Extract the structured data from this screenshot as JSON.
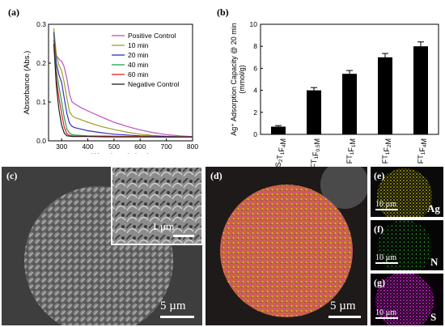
{
  "panels": {
    "a": "(a)",
    "b": "(b)",
    "c": "(c)",
    "d": "(d)",
    "e": "(e)",
    "f": "(f)",
    "g": "(g)"
  },
  "chart_data": [
    {
      "type": "line",
      "xlabel": "Wavelength (nm)",
      "ylabel": "Absorbance (Abs.)",
      "xlim": [
        250,
        800
      ],
      "ylim": [
        0.0,
        0.3
      ],
      "xticks": [
        300,
        400,
        500,
        600,
        700,
        800
      ],
      "yticks": [
        0.0,
        0.1,
        0.2,
        0.3
      ],
      "legend_position": "top-right",
      "series": [
        {
          "name": "Positive Control",
          "color": "#c050c0",
          "x": [
            270,
            280,
            290,
            300,
            310,
            320,
            330,
            340,
            350,
            375,
            400,
            450,
            500,
            550,
            600,
            650,
            700,
            750,
            800
          ],
          "y": [
            0.28,
            0.22,
            0.21,
            0.205,
            0.19,
            0.16,
            0.12,
            0.1,
            0.095,
            0.085,
            0.077,
            0.062,
            0.048,
            0.037,
            0.028,
            0.021,
            0.016,
            0.013,
            0.011
          ]
        },
        {
          "name": "10 min",
          "color": "#a0a020",
          "x": [
            270,
            280,
            290,
            300,
            310,
            320,
            330,
            340,
            350,
            375,
            400,
            450,
            500,
            550,
            600,
            650,
            700,
            750,
            800
          ],
          "y": [
            0.29,
            0.22,
            0.195,
            0.18,
            0.15,
            0.11,
            0.075,
            0.065,
            0.06,
            0.054,
            0.048,
            0.037,
            0.029,
            0.022,
            0.017,
            0.014,
            0.012,
            0.011,
            0.01
          ]
        },
        {
          "name": "20 min",
          "color": "#3030c0",
          "x": [
            270,
            280,
            290,
            300,
            310,
            320,
            330,
            340,
            350,
            375,
            400,
            450,
            500,
            600,
            700,
            800
          ],
          "y": [
            0.28,
            0.2,
            0.17,
            0.15,
            0.11,
            0.07,
            0.045,
            0.037,
            0.034,
            0.03,
            0.026,
            0.021,
            0.017,
            0.013,
            0.011,
            0.01
          ]
        },
        {
          "name": "40 min",
          "color": "#20a050",
          "x": [
            270,
            280,
            290,
            300,
            310,
            320,
            330,
            340,
            350,
            375,
            400,
            500,
            600,
            700,
            800
          ],
          "y": [
            0.27,
            0.18,
            0.14,
            0.1,
            0.06,
            0.03,
            0.02,
            0.016,
            0.015,
            0.014,
            0.013,
            0.012,
            0.011,
            0.01,
            0.01
          ]
        },
        {
          "name": "60 min",
          "color": "#e02020",
          "x": [
            270,
            280,
            290,
            300,
            310,
            320,
            330,
            340,
            350,
            400,
            500,
            600,
            700,
            800
          ],
          "y": [
            0.26,
            0.16,
            0.11,
            0.07,
            0.035,
            0.018,
            0.014,
            0.013,
            0.012,
            0.012,
            0.011,
            0.011,
            0.01,
            0.01
          ]
        },
        {
          "name": "Negative Control",
          "color": "#202020",
          "x": [
            270,
            280,
            290,
            300,
            310,
            320,
            330,
            340,
            350,
            400,
            500,
            600,
            700,
            800
          ],
          "y": [
            0.25,
            0.14,
            0.08,
            0.04,
            0.02,
            0.013,
            0.012,
            0.011,
            0.011,
            0.011,
            0.01,
            0.01,
            0.01,
            0.01
          ]
        }
      ]
    },
    {
      "type": "bar",
      "ylabel_line1": "Ag⁺ Adsorption Capacity @ 20 min",
      "ylabel_line2": "(mmol/g)",
      "ylim": [
        0,
        10
      ],
      "yticks": [
        0,
        2,
        4,
        6,
        8,
        10
      ],
      "categories": [
        {
          "label": "S",
          "sub1": "2",
          "mid": "T",
          "sub2": "1",
          "end": "F",
          "sub3": "4",
          "tail": "M"
        },
        {
          "label": "FT",
          "sub1": "1",
          "mid": "F",
          "sub2": "0.5",
          "end": "M",
          "sub3": "",
          "tail": ""
        },
        {
          "label": "FT",
          "sub1": "1",
          "mid": "F",
          "sub2": "1",
          "end": "M",
          "sub3": "",
          "tail": ""
        },
        {
          "label": "FT",
          "sub1": "1",
          "mid": "F",
          "sub2": "2",
          "end": "M",
          "sub3": "",
          "tail": ""
        },
        {
          "label": "FT",
          "sub1": "1",
          "mid": "F",
          "sub2": "4",
          "end": "M",
          "sub3": "",
          "tail": ""
        }
      ],
      "values": [
        0.7,
        4.0,
        5.5,
        7.0,
        8.0
      ],
      "errors": [
        0.1,
        0.25,
        0.3,
        0.35,
        0.4
      ],
      "bar_color": "#000000"
    }
  ],
  "micrographs": {
    "c_scale_main": "5 µm",
    "c_scale_inset": "1 µm",
    "d_scale": "5 µm",
    "e_scale": "10 µm",
    "e_element": "Ag",
    "f_scale": "10 µm",
    "f_element": "N",
    "g_scale": "10 µm",
    "g_element": "S"
  },
  "colors": {
    "ag_map": "#c8c020",
    "n_map": "#30b030",
    "s_map": "#d020d0",
    "sem_bg": "#3a3a3a"
  }
}
